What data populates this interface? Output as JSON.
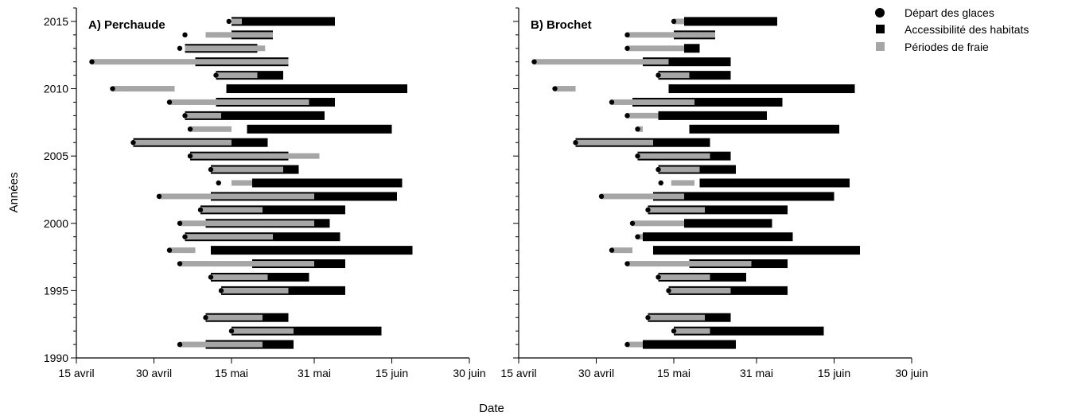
{
  "chart_data": {
    "type": "bar",
    "subtype": "horizontal-range",
    "xlabel": "Date",
    "ylabel": "Années",
    "x_unit": "day-of-year",
    "xlim": [
      105,
      181
    ],
    "ylim": [
      1990,
      2016
    ],
    "x_ticks": [
      {
        "value": 105,
        "label": "15 avril"
      },
      {
        "value": 120,
        "label": "30 avril"
      },
      {
        "value": 135,
        "label": "15 mai"
      },
      {
        "value": 151,
        "label": "31 mai"
      },
      {
        "value": 166,
        "label": "15 juin"
      },
      {
        "value": 181,
        "label": "30 juin"
      }
    ],
    "y_ticks": [
      1990,
      1995,
      2000,
      2005,
      2010,
      2015
    ],
    "legend": {
      "placement": "top-right",
      "entries": [
        {
          "key": "ice",
          "label": "Départ des glaces",
          "color": "#000000",
          "marker": "circle"
        },
        {
          "key": "hab",
          "label": "Accessibilité des habitats",
          "color": "#000000",
          "marker": "square"
        },
        {
          "key": "spawn",
          "label": "Périodes de fraie",
          "color": "#a6a6a6",
          "marker": "square"
        }
      ]
    },
    "panels": [
      {
        "title": "A) Perchaude",
        "years": [
          {
            "year": 2015,
            "ice": 134.5,
            "hab": [
              135,
              155
            ],
            "spawn": [
              135,
              137
            ]
          },
          {
            "year": 2014,
            "ice": 126,
            "hab": [
              135,
              143
            ],
            "spawn": [
              130,
              143
            ]
          },
          {
            "year": 2013,
            "ice": 125,
            "hab": [
              126,
              140
            ],
            "spawn": [
              126,
              141.5
            ]
          },
          {
            "year": 2012,
            "ice": 108,
            "hab": [
              128,
              146
            ],
            "spawn": [
              108,
              146
            ]
          },
          {
            "year": 2011,
            "ice": 132,
            "hab": [
              132,
              145
            ],
            "spawn": [
              132,
              140
            ]
          },
          {
            "year": 2010,
            "ice": 112,
            "hab": [
              134,
              169
            ],
            "spawn": [
              112,
              124
            ]
          },
          {
            "year": 2009,
            "ice": 123,
            "hab": [
              132,
              155
            ],
            "spawn": [
              123,
              150
            ]
          },
          {
            "year": 2008,
            "ice": 126,
            "hab": [
              126,
              153
            ],
            "spawn": [
              126,
              133
            ]
          },
          {
            "year": 2007,
            "ice": 127,
            "hab": [
              138,
              166
            ],
            "spawn": [
              127,
              135
            ]
          },
          {
            "year": 2006,
            "ice": 116,
            "hab": [
              116,
              142
            ],
            "spawn": [
              116,
              135
            ]
          },
          {
            "year": 2005,
            "ice": 127,
            "hab": [
              127,
              146
            ],
            "spawn": [
              127,
              152
            ]
          },
          {
            "year": 2004,
            "ice": 131,
            "hab": [
              131,
              148
            ],
            "spawn": [
              131,
              145
            ]
          },
          {
            "year": 2003,
            "ice": 132.5,
            "hab": [
              139,
              168
            ],
            "spawn": [
              135,
              139
            ]
          },
          {
            "year": 2002,
            "ice": 121,
            "hab": [
              131,
              167
            ],
            "spawn": [
              121,
              151
            ]
          },
          {
            "year": 2001,
            "ice": 129,
            "hab": [
              129,
              157
            ],
            "spawn": [
              129,
              141
            ]
          },
          {
            "year": 2000,
            "ice": 125,
            "hab": [
              130,
              154
            ],
            "spawn": [
              125,
              151
            ]
          },
          {
            "year": 1999,
            "ice": 126,
            "hab": [
              126,
              156
            ],
            "spawn": [
              126,
              143
            ]
          },
          {
            "year": 1998,
            "ice": 123,
            "hab": [
              131,
              170
            ],
            "spawn": [
              123,
              128
            ]
          },
          {
            "year": 1997,
            "ice": 125,
            "hab": [
              139,
              157
            ],
            "spawn": [
              125,
              151
            ]
          },
          {
            "year": 1996,
            "ice": 131,
            "hab": [
              131,
              150
            ],
            "spawn": [
              131,
              142
            ]
          },
          {
            "year": 1995,
            "ice": 133,
            "hab": [
              133,
              157
            ],
            "spawn": [
              133,
              146
            ]
          },
          {
            "year": 1993,
            "ice": 130,
            "hab": [
              130,
              146
            ],
            "spawn": [
              130,
              141
            ]
          },
          {
            "year": 1992,
            "ice": 135,
            "hab": [
              135,
              164
            ],
            "spawn": [
              135,
              147
            ]
          },
          {
            "year": 1991,
            "ice": 125,
            "hab": [
              130,
              147
            ],
            "spawn": [
              125,
              141
            ]
          }
        ]
      },
      {
        "title": "B) Brochet",
        "years": [
          {
            "year": 2015,
            "ice": 135,
            "hab": [
              137,
              155
            ],
            "spawn": [
              135,
              137
            ]
          },
          {
            "year": 2014,
            "ice": 126,
            "hab": [
              135,
              143
            ],
            "spawn": [
              126,
              143
            ]
          },
          {
            "year": 2013,
            "ice": 126,
            "hab": [
              137,
              140
            ],
            "spawn": [
              126,
              137
            ]
          },
          {
            "year": 2012,
            "ice": 108,
            "hab": [
              129,
              146
            ],
            "spawn": [
              108,
              134
            ]
          },
          {
            "year": 2011,
            "ice": 132,
            "hab": [
              132,
              146
            ],
            "spawn": [
              132,
              138
            ]
          },
          {
            "year": 2010,
            "ice": 112,
            "hab": [
              134,
              170
            ],
            "spawn": [
              112,
              116
            ]
          },
          {
            "year": 2009,
            "ice": 123,
            "hab": [
              127,
              156
            ],
            "spawn": [
              123,
              139
            ]
          },
          {
            "year": 2008,
            "ice": 126,
            "hab": [
              132,
              153
            ],
            "spawn": [
              126,
              132
            ]
          },
          {
            "year": 2007,
            "ice": 128,
            "hab": [
              138,
              167
            ],
            "spawn": [
              128,
              129
            ]
          },
          {
            "year": 2006,
            "ice": 116,
            "hab": [
              116,
              142
            ],
            "spawn": [
              116,
              131
            ]
          },
          {
            "year": 2005,
            "ice": 128,
            "hab": [
              128,
              146
            ],
            "spawn": [
              128,
              142
            ]
          },
          {
            "year": 2004,
            "ice": 132,
            "hab": [
              132,
              147
            ],
            "spawn": [
              132,
              140
            ]
          },
          {
            "year": 2003,
            "ice": 132.5,
            "hab": [
              140,
              169
            ],
            "spawn": [
              134.5,
              139
            ]
          },
          {
            "year": 2002,
            "ice": 121,
            "hab": [
              131,
              166
            ],
            "spawn": [
              121,
              137
            ]
          },
          {
            "year": 2001,
            "ice": 130,
            "hab": [
              130,
              157
            ],
            "spawn": [
              130,
              141
            ]
          },
          {
            "year": 2000,
            "ice": 127,
            "hab": [
              137,
              154
            ],
            "spawn": [
              127,
              137
            ]
          },
          {
            "year": 1999,
            "ice": 128,
            "hab": [
              129,
              158
            ],
            "spawn": [
              128,
              129
            ]
          },
          {
            "year": 1998,
            "ice": 123,
            "hab": [
              131,
              171
            ],
            "spawn": [
              123,
              127
            ]
          },
          {
            "year": 1997,
            "ice": 126,
            "hab": [
              138,
              157
            ],
            "spawn": [
              126,
              150
            ]
          },
          {
            "year": 1996,
            "ice": 132,
            "hab": [
              132,
              149
            ],
            "spawn": [
              132,
              142
            ]
          },
          {
            "year": 1995,
            "ice": 134,
            "hab": [
              134,
              157
            ],
            "spawn": [
              134,
              146
            ]
          },
          {
            "year": 1993,
            "ice": 130,
            "hab": [
              130,
              146
            ],
            "spawn": [
              130,
              141
            ]
          },
          {
            "year": 1992,
            "ice": 135,
            "hab": [
              135,
              164
            ],
            "spawn": [
              135,
              142
            ]
          },
          {
            "year": 1991,
            "ice": 126,
            "hab": [
              129,
              147
            ],
            "spawn": [
              126,
              129
            ]
          }
        ]
      }
    ]
  }
}
